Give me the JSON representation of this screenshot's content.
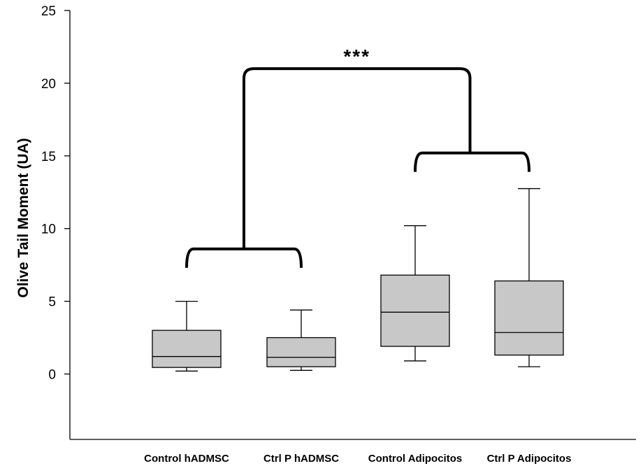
{
  "chart_data": {
    "type": "box",
    "title": "",
    "xlabel": "",
    "ylabel": "Olive Tail Moment (UA)",
    "ylim": [
      -4.5,
      25
    ],
    "yticks": [
      0,
      5,
      10,
      15,
      20,
      25
    ],
    "grid": false,
    "box_color": "#c8c8c8",
    "categories": [
      "Control hADMSC",
      "Ctrl P hADMSC",
      "Control Adipocitos",
      "Ctrl P Adipocitos"
    ],
    "boxes": [
      {
        "category": "Control hADMSC",
        "whisker_low": 0.2,
        "q1": 0.45,
        "median": 1.2,
        "q3": 3.0,
        "whisker_high": 5.0
      },
      {
        "category": "Ctrl P hADMSC",
        "whisker_low": 0.25,
        "q1": 0.5,
        "median": 1.15,
        "q3": 2.5,
        "whisker_high": 4.4
      },
      {
        "category": "Control Adipocitos",
        "whisker_low": 0.9,
        "q1": 1.9,
        "median": 4.25,
        "q3": 6.8,
        "whisker_high": 10.2
      },
      {
        "category": "Ctrl P Adipocitos",
        "whisker_low": 0.5,
        "q1": 1.3,
        "median": 2.85,
        "q3": 6.4,
        "whisker_high": 12.75
      }
    ],
    "significance": {
      "label": "***",
      "comparison": "hADMSC groups vs Adipocitos groups"
    }
  }
}
